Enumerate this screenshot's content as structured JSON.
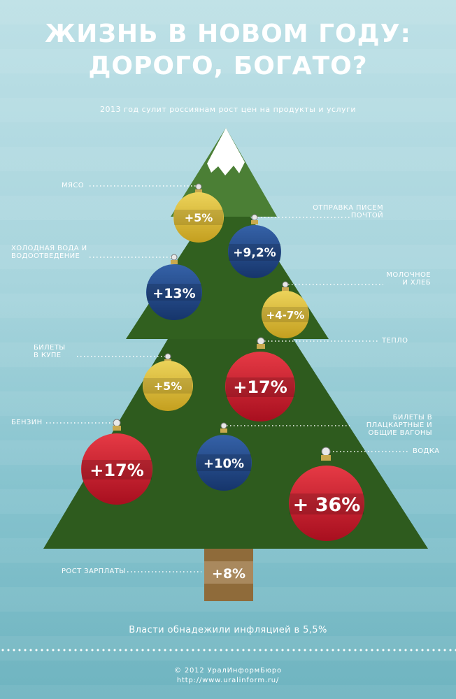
{
  "title_line1": "ЖИЗНЬ  В НОВОМ ГОДУ:",
  "title_line2": "ДОРОГО, БОГАТО?",
  "subtitle": "2013 год сулит россиянам рост цен на продукты и услуги",
  "items": [
    {
      "label": "мясо",
      "value": "+5%",
      "color": "yellow"
    },
    {
      "label": "Отправка писем почтой",
      "value": "+9,2%",
      "color": "blue"
    },
    {
      "label": "Холодная вода и водоотведение",
      "value": "+13%",
      "color": "blue"
    },
    {
      "label": "Молочное и хлеб",
      "value": "+4-7%",
      "color": "yellow"
    },
    {
      "label": "Тепло",
      "value": "+17%",
      "color": "red"
    },
    {
      "label": "Билеты в купе",
      "value": "+5%",
      "color": "yellow"
    },
    {
      "label": "Бензин",
      "value": "+17%",
      "color": "red"
    },
    {
      "label": "Билеты в плацкартные и общие вагоны",
      "value": "+10%",
      "color": "blue"
    },
    {
      "label": "Водка",
      "value": "+ 36%",
      "color": "red"
    },
    {
      "label": "Рост зарплаты",
      "value": "+8%",
      "color": "brown"
    }
  ],
  "label_lines": {
    "meat": "мясо",
    "mail_1": "Отправка писем",
    "mail_2": "почтой",
    "water_1": "Холодная вода и",
    "water_2": "водоотведение",
    "dairy_1": "Молочное",
    "dairy_2": "и хлеб",
    "heat": "Тепло",
    "kupe_1": "Билеты",
    "kupe_2": "в купе",
    "petrol": "Бензин",
    "platz_1": "Билеты в",
    "platz_2": "плацкартные и",
    "platz_3": "общие вагоны",
    "vodka": "Водка",
    "salary": "Рост зарплаты"
  },
  "note": "Власти обнадежили инфляцией в 5,5%",
  "copyright": "©  2012  УралИнформБюро",
  "url": "http://www.uralinform.ru/",
  "colors": {
    "tree": "#2f5e1f",
    "tree_top": "#4a8033",
    "trunk": "#8f6b3a",
    "red": "#c41a2c",
    "blue": "#1f4787",
    "yellow": "#d9b92f",
    "brown": "#9a7a4f"
  }
}
